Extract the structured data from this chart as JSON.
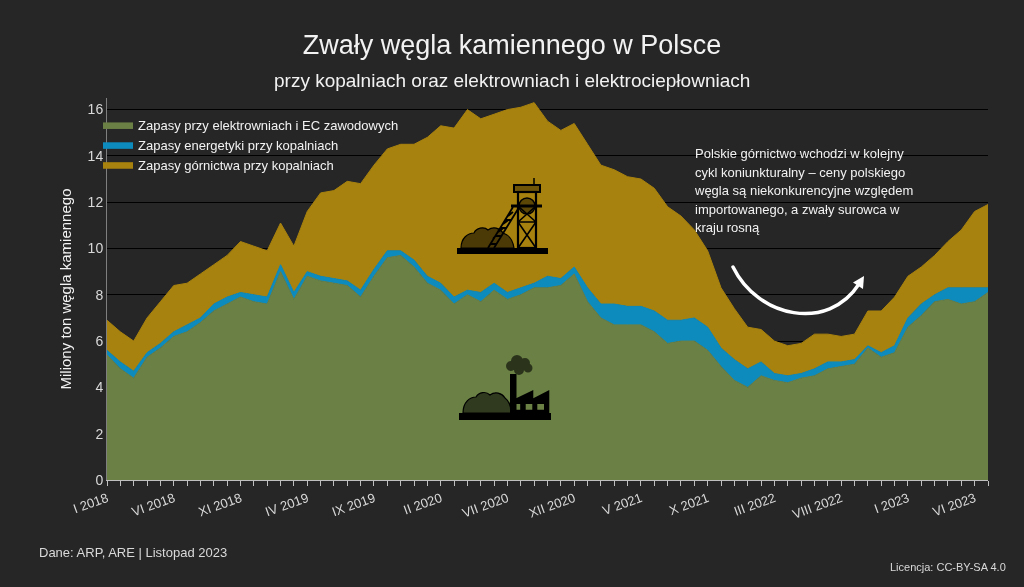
{
  "chart_data": {
    "type": "area",
    "title": "Zwały węgla kamiennego w Polsce",
    "subtitle": "przy kopalniach oraz elektrowniach i elektrociepłowniach",
    "ylabel": "Miliony ton węgla kamiennego",
    "categories": [
      "I 2018",
      null,
      null,
      null,
      null,
      "VI 2018",
      null,
      null,
      null,
      null,
      "XI 2018",
      null,
      null,
      null,
      null,
      "IV 2019",
      null,
      null,
      null,
      null,
      "IX 2019",
      null,
      null,
      null,
      null,
      "II 2020",
      null,
      null,
      null,
      null,
      "VII 2020",
      null,
      null,
      null,
      null,
      "XII 2020",
      null,
      null,
      null,
      null,
      "V 2021",
      null,
      null,
      null,
      null,
      "X 2021",
      null,
      null,
      null,
      null,
      "III 2022",
      null,
      null,
      null,
      null,
      "VIII 2022",
      null,
      null,
      null,
      null,
      "I 2023",
      null,
      null,
      null,
      null,
      "VI 2023",
      null
    ],
    "stacked": true,
    "series": [
      {
        "name": "Zapasy przy elektrowniach i EC zawodowych",
        "color": "#6b8045",
        "values": [
          5.4,
          4.8,
          4.4,
          5.3,
          5.7,
          6.2,
          6.4,
          6.8,
          7.3,
          7.6,
          7.9,
          7.7,
          7.6,
          9.0,
          7.8,
          8.8,
          8.6,
          8.5,
          8.4,
          7.9,
          8.8,
          9.6,
          9.7,
          9.2,
          8.5,
          8.2,
          7.6,
          8.0,
          7.7,
          8.2,
          7.8,
          8.0,
          8.3,
          8.3,
          8.4,
          8.9,
          7.7,
          7.0,
          6.7,
          6.7,
          6.7,
          6.4,
          5.9,
          6.0,
          6.0,
          5.6,
          4.9,
          4.3,
          4.0,
          4.5,
          4.3,
          4.2,
          4.4,
          4.5,
          4.8,
          4.9,
          5.0,
          5.7,
          5.3,
          5.5,
          6.6,
          7.1,
          7.7,
          7.8,
          7.6,
          7.7,
          8.1
        ]
      },
      {
        "name": "Zapasy energetyki przy kopalniach",
        "color": "#0e8bbd",
        "values": [
          0.2,
          0.3,
          0.3,
          0.2,
          0.2,
          0.2,
          0.3,
          0.2,
          0.3,
          0.3,
          0.2,
          0.3,
          0.3,
          0.3,
          0.3,
          0.2,
          0.2,
          0.2,
          0.2,
          0.3,
          0.3,
          0.3,
          0.2,
          0.3,
          0.3,
          0.3,
          0.3,
          0.2,
          0.4,
          0.3,
          0.3,
          0.3,
          0.2,
          0.5,
          0.3,
          0.3,
          0.6,
          0.6,
          0.9,
          0.8,
          0.8,
          0.9,
          1.0,
          0.9,
          1.0,
          1.0,
          0.8,
          0.9,
          0.8,
          0.6,
          0.3,
          0.3,
          0.2,
          0.3,
          0.3,
          0.2,
          0.2,
          0.1,
          0.2,
          0.3,
          0.4,
          0.5,
          0.3,
          0.5,
          0.7,
          0.6,
          0.2
        ]
      },
      {
        "name": "Zapasy górnictwa przy kopalniach",
        "color": "#a8820e",
        "values": [
          1.3,
          1.3,
          1.3,
          1.5,
          1.8,
          2.0,
          1.8,
          1.9,
          1.7,
          1.8,
          2.2,
          2.1,
          2.0,
          1.8,
          2.0,
          2.6,
          3.6,
          3.8,
          4.3,
          4.6,
          4.5,
          4.4,
          4.6,
          5.0,
          6.0,
          6.8,
          7.3,
          7.8,
          7.5,
          7.3,
          7.9,
          7.8,
          7.8,
          6.7,
          6.4,
          6.2,
          6.2,
          6.0,
          5.8,
          5.6,
          5.5,
          5.3,
          4.9,
          4.5,
          3.8,
          3.3,
          2.6,
          2.2,
          1.8,
          1.4,
          1.4,
          1.3,
          1.3,
          1.5,
          1.2,
          1.1,
          1.1,
          1.5,
          1.8,
          2.1,
          1.8,
          1.6,
          1.7,
          2.0,
          2.5,
          3.3,
          3.6
        ]
      }
    ],
    "ylim": [
      0,
      16.5
    ],
    "yticks": [
      0,
      2,
      4,
      6,
      8,
      10,
      12,
      14,
      16
    ],
    "grid": "y",
    "legend": "top left",
    "annotations": [
      "Polskie górnictwo wchodzi w kolejny cykl koniunkturalny – ceny polskiego węgla są niekonkurencyjne względem importowanego, a zwały surowca w kraju rosną",
      "Dane: ARP, ARE | Listopad 2023",
      "Licencja: CC-BY-SA 4.0"
    ]
  }
}
